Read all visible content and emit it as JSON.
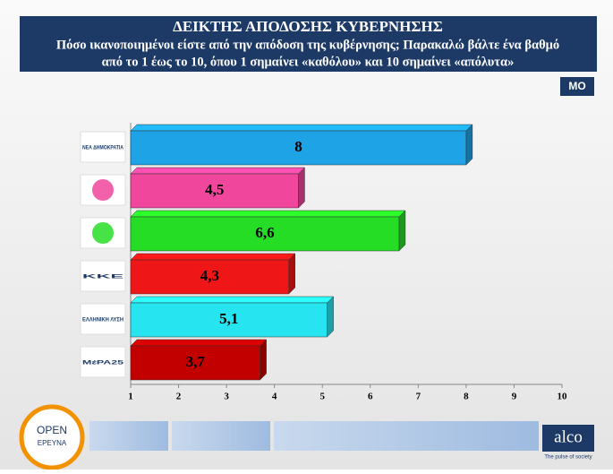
{
  "header": {
    "title": "ΔΕΙΚΤΗΣ ΑΠΟΔΟΣΗΣ ΚΥΒΕΡΝΗΣΗΣ",
    "subtitle_lines": [
      "Πόσο ικανοποιημένοι είστε από την απόδοση της κυβέρνησης; Παρακαλώ βάλτε ένα βαθμό",
      "από το 1 έως το 10, όπου 1 σημαίνει «καθόλου» και 10 σημαίνει «απόλυτα»"
    ],
    "badge": "ΜΟ"
  },
  "chart_data": {
    "type": "bar",
    "orientation": "horizontal",
    "categories": [
      "ΝΕΑ ΔΗΜΟΚΡΑΤΙΑ",
      null,
      null,
      "ΚΚΕ",
      "ΕΛΛΗΝΙΚΗ ΛΥΣΗ",
      "ΜέΡΑ25"
    ],
    "values": [
      8,
      4.5,
      6.6,
      4.3,
      5.1,
      3.7
    ],
    "value_labels": [
      "8",
      "4,5",
      "6,6",
      "4,3",
      "5,1",
      "3,7"
    ],
    "colors": [
      "#1ea3e6",
      "#f0469c",
      "#26dd26",
      "#ee1616",
      "#26e4f0",
      "#c20000"
    ],
    "xlim": [
      1,
      10
    ],
    "xticks": [
      1,
      2,
      3,
      4,
      5,
      6,
      7,
      8,
      9,
      10
    ]
  },
  "footer": {
    "left_logo": [
      "OPEN",
      "ΕΡΕΥΝΑ"
    ],
    "right_logo": "alco",
    "right_tagline": "The pulse of society"
  }
}
